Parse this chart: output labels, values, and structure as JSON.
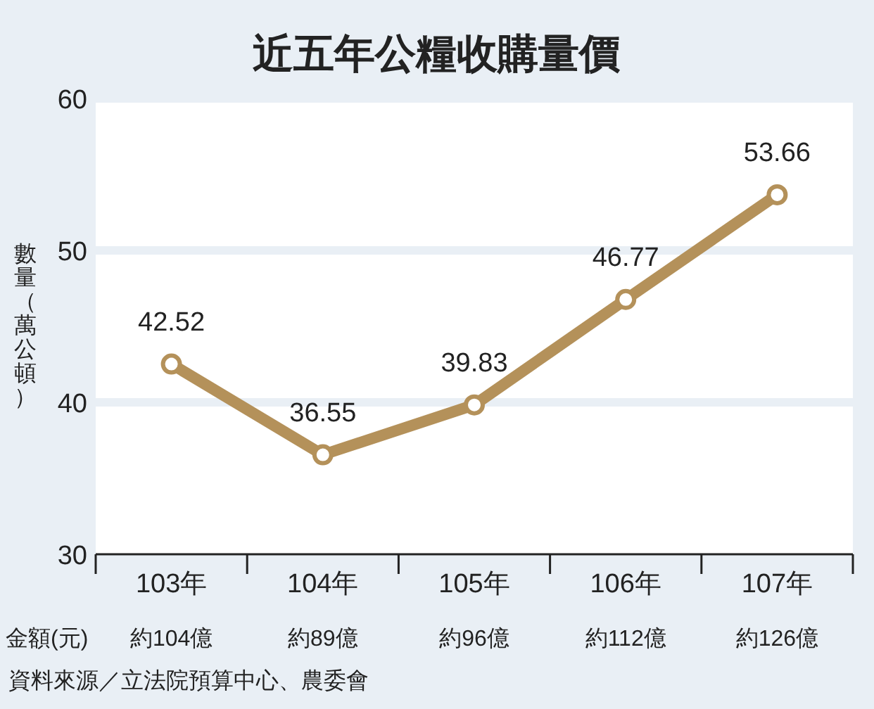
{
  "chart_data": {
    "type": "line",
    "title": "近五年公糧收購量價",
    "ylabel": "數量（萬公頓）",
    "categories": [
      "103年",
      "104年",
      "105年",
      "106年",
      "107年"
    ],
    "series": [
      {
        "color": "#b4915a",
        "values": [
          42.52,
          36.55,
          39.83,
          46.77,
          53.66
        ]
      }
    ],
    "ylim": [
      30,
      60
    ],
    "yticks": [
      30,
      40,
      50,
      60
    ],
    "grid": "y",
    "marker": "circle",
    "line_style": "solid",
    "data_labels": true,
    "annotations": [
      "金額(元)",
      "約104億",
      "約89億",
      "約96億",
      "約112億",
      "約126億",
      "資料來源／立法院預算中心、農委會"
    ]
  }
}
